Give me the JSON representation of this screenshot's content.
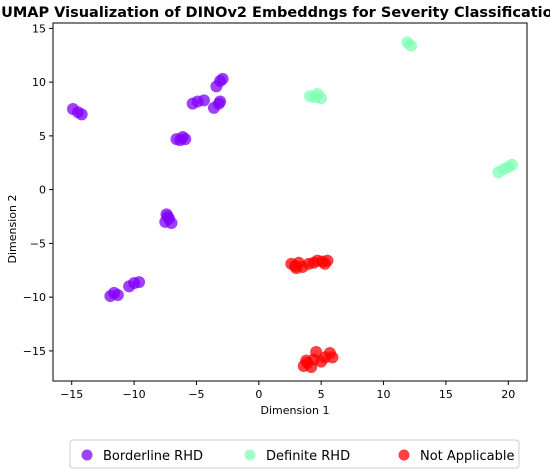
{
  "chart_data": {
    "type": "scatter",
    "title": "UMAP Visualization of DINOv2 Embeddngs for Severity Classification",
    "xlabel": "Dimension 1",
    "ylabel": "Dimension 2",
    "xlim": [
      -16.5,
      21.5
    ],
    "ylim": [
      -17.8,
      15.5
    ],
    "xticks": [
      -15,
      -10,
      -5,
      0,
      5,
      10,
      15,
      20
    ],
    "yticks": [
      -15,
      -10,
      -5,
      0,
      5,
      10,
      15
    ],
    "grid": false,
    "legend_position": "bottom",
    "series": [
      {
        "name": "Borderline RHD",
        "color": "#8000ff",
        "points": [
          [
            -14.9,
            7.5
          ],
          [
            -14.5,
            7.2
          ],
          [
            -14.2,
            7.0
          ],
          [
            -5.3,
            8.0
          ],
          [
            -4.9,
            8.2
          ],
          [
            -4.4,
            8.3
          ],
          [
            -3.4,
            9.6
          ],
          [
            -3.1,
            10.1
          ],
          [
            -2.9,
            10.3
          ],
          [
            -3.6,
            7.6
          ],
          [
            -3.2,
            8.0
          ],
          [
            -3.1,
            8.2
          ],
          [
            -6.6,
            4.7
          ],
          [
            -6.3,
            4.6
          ],
          [
            -5.9,
            4.7
          ],
          [
            -6.1,
            4.9
          ],
          [
            -7.4,
            -2.3
          ],
          [
            -7.2,
            -2.7
          ],
          [
            -7.5,
            -3.0
          ],
          [
            -7.0,
            -3.1
          ],
          [
            -7.3,
            -2.5
          ],
          [
            -10.4,
            -9.0
          ],
          [
            -10.0,
            -8.7
          ],
          [
            -9.6,
            -8.6
          ],
          [
            -11.9,
            -9.9
          ],
          [
            -11.6,
            -9.6
          ],
          [
            -11.3,
            -9.8
          ]
        ]
      },
      {
        "name": "Definite RHD",
        "color": "#80ffb4",
        "points": [
          [
            4.1,
            8.7
          ],
          [
            4.5,
            8.6
          ],
          [
            5.0,
            8.5
          ],
          [
            4.7,
            8.9
          ],
          [
            11.9,
            13.7
          ],
          [
            12.2,
            13.4
          ],
          [
            19.2,
            1.6
          ],
          [
            19.6,
            1.9
          ],
          [
            20.0,
            2.1
          ],
          [
            20.3,
            2.3
          ]
        ]
      },
      {
        "name": "Not Applicable",
        "color": "#ff0000",
        "points": [
          [
            2.6,
            -6.9
          ],
          [
            2.9,
            -7.1
          ],
          [
            3.2,
            -6.8
          ],
          [
            3.5,
            -7.2
          ],
          [
            4.0,
            -6.9
          ],
          [
            4.4,
            -6.8
          ],
          [
            4.7,
            -6.6
          ],
          [
            5.1,
            -6.7
          ],
          [
            5.5,
            -6.6
          ],
          [
            5.3,
            -6.9
          ],
          [
            3.0,
            -7.3
          ],
          [
            3.6,
            -16.4
          ],
          [
            3.9,
            -16.1
          ],
          [
            4.2,
            -16.5
          ],
          [
            4.4,
            -15.8
          ],
          [
            4.6,
            -15.1
          ],
          [
            5.0,
            -16.0
          ],
          [
            5.3,
            -15.6
          ],
          [
            5.7,
            -15.2
          ],
          [
            5.9,
            -15.6
          ],
          [
            3.8,
            -15.9
          ]
        ]
      }
    ]
  }
}
